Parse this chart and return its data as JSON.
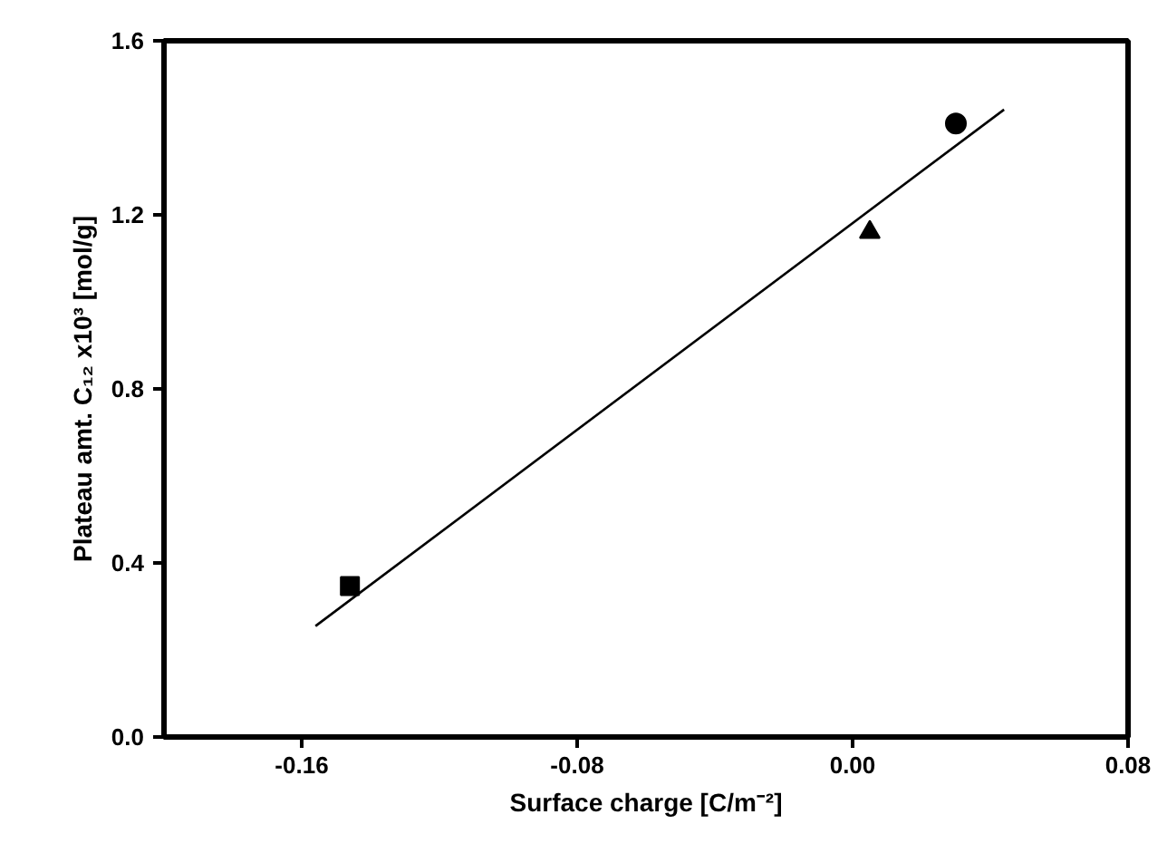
{
  "chart_data": {
    "type": "scatter",
    "xlabel": "Surface charge [C/m⁻²]",
    "ylabel": "Plateau amt. C₁₂ x10³ [mol/g]",
    "xlim": [
      -0.2,
      0.08
    ],
    "xticks": [
      {
        "value": -0.16,
        "label": "-0.16"
      },
      {
        "value": -0.08,
        "label": "-0.08"
      },
      {
        "value": 0,
        "label": "0.00"
      },
      {
        "value": 0.08,
        "label": "0.08"
      }
    ],
    "ylim": [
      0,
      1.6
    ],
    "yticks": [
      {
        "value": 0,
        "label": "0.0"
      },
      {
        "value": 0.4,
        "label": "0.4"
      },
      {
        "value": 0.8,
        "label": "0.8"
      },
      {
        "value": 1.2,
        "label": "1.2"
      },
      {
        "value": 1.6,
        "label": "1.6"
      }
    ],
    "grid": false,
    "series": [
      {
        "marker": "square",
        "color": "#000000",
        "x": [
          -0.146
        ],
        "values": [
          0.347
        ]
      },
      {
        "marker": "triangle",
        "color": "#000000",
        "x": [
          0.005
        ],
        "values": [
          1.16
        ]
      },
      {
        "marker": "circle",
        "color": "#000000",
        "x": [
          0.03
        ],
        "values": [
          1.41
        ]
      },
      {
        "type": "line",
        "marker": "none",
        "color": "#000000",
        "x": [
          -0.156,
          0.044
        ],
        "values": [
          0.255,
          1.442
        ]
      }
    ]
  }
}
